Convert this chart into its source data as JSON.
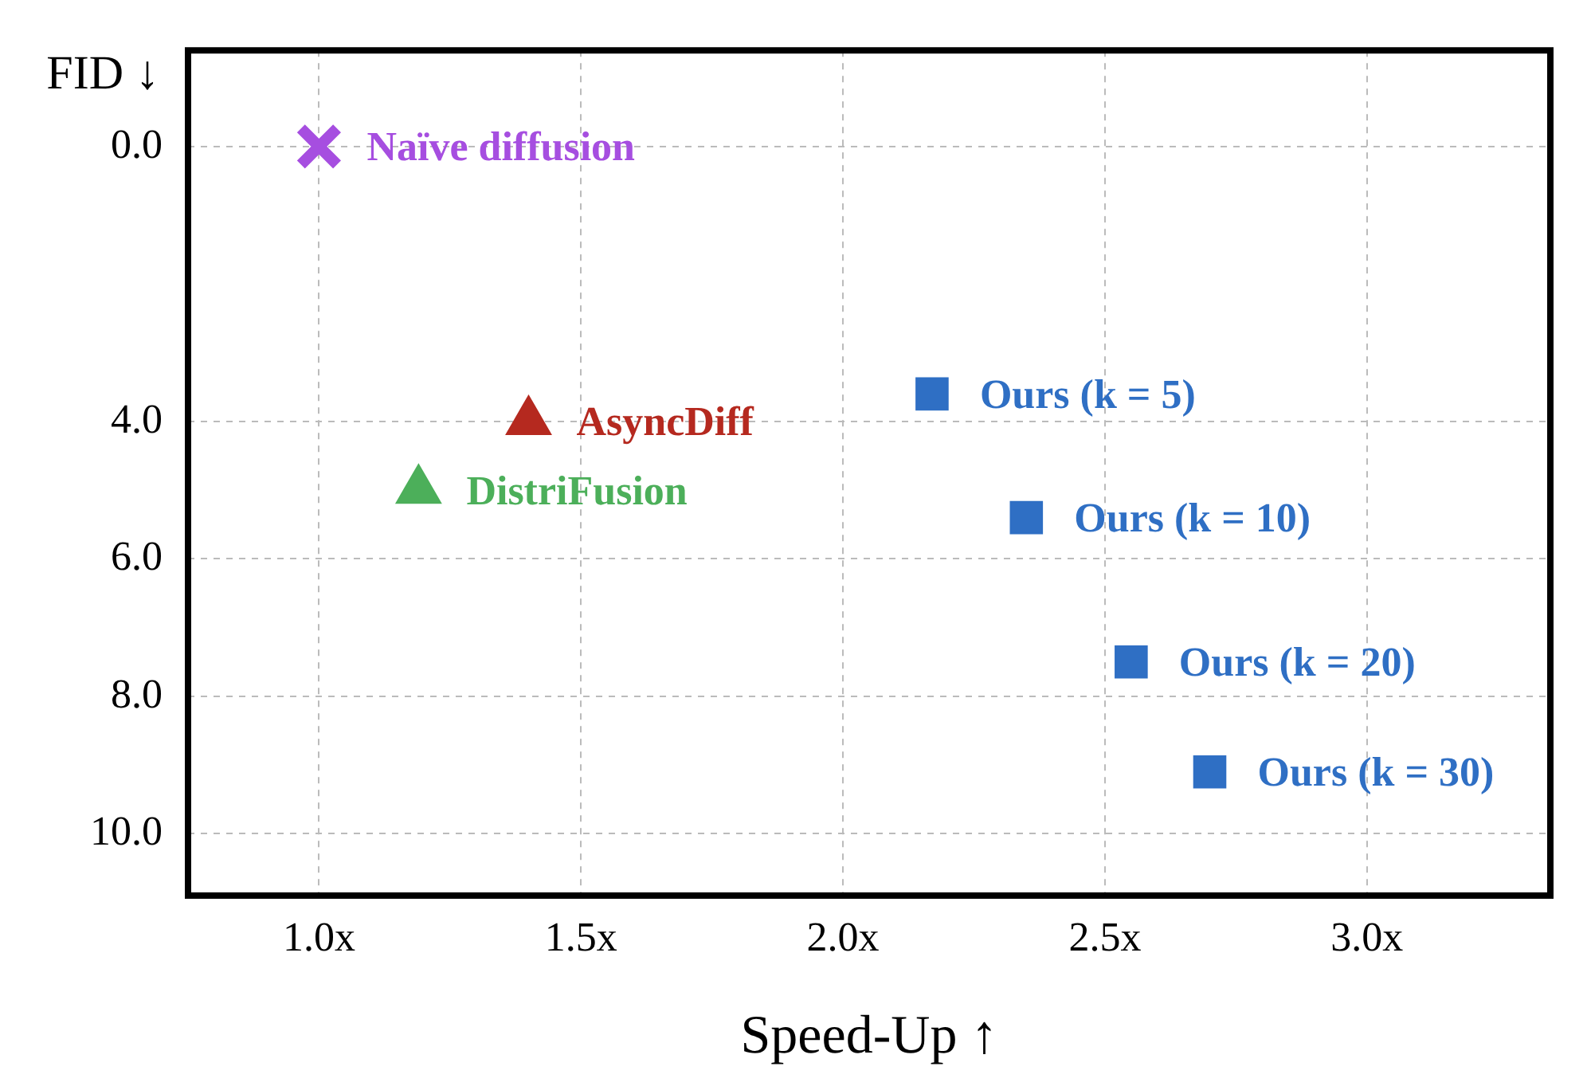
{
  "chart_data": {
    "type": "scatter",
    "xlabel": "Speed-Up ↑",
    "ylabel": "FID ↓",
    "xlim": [
      0.75,
      3.35
    ],
    "ylim": [
      10.9,
      -1.4
    ],
    "xticks": [
      {
        "value": 1,
        "label": "1.0x"
      },
      {
        "value": 1.5,
        "label": "1.5x"
      },
      {
        "value": 2,
        "label": "2.0x"
      },
      {
        "value": 2.5,
        "label": "2.5x"
      },
      {
        "value": 3,
        "label": "3.0x"
      }
    ],
    "yticks": [
      {
        "value": 0,
        "label": "0.0"
      },
      {
        "value": 4,
        "label": "4.0"
      },
      {
        "value": 6,
        "label": "6.0"
      },
      {
        "value": 8,
        "label": "8.0"
      },
      {
        "value": 10,
        "label": "10.0"
      }
    ],
    "grid": true,
    "series": [
      {
        "name": "Naïve diffusion",
        "color": "#a64ee0",
        "marker": "cross",
        "x": [
          1.0
        ],
        "values": [
          0.0
        ]
      },
      {
        "name": "AsyncDiff",
        "color": "#b5291f",
        "marker": "triangle",
        "x": [
          1.4
        ],
        "values": [
          4.0
        ]
      },
      {
        "name": "DistriFusion",
        "color": "#4caf5a",
        "marker": "triangle",
        "x": [
          1.19
        ],
        "values": [
          5.0
        ]
      },
      {
        "name": "Ours (k = 5)",
        "color": "#2f6fc4",
        "marker": "square",
        "x": [
          2.17
        ],
        "values": [
          3.6
        ]
      },
      {
        "name": "Ours (k = 10)",
        "color": "#2f6fc4",
        "marker": "square",
        "x": [
          2.35
        ],
        "values": [
          5.4
        ]
      },
      {
        "name": "Ours (k = 20)",
        "color": "#2f6fc4",
        "marker": "square",
        "x": [
          2.55
        ],
        "values": [
          7.5
        ]
      },
      {
        "name": "Ours (k = 30)",
        "color": "#2f6fc4",
        "marker": "square",
        "x": [
          2.7
        ],
        "values": [
          9.1
        ]
      }
    ]
  }
}
